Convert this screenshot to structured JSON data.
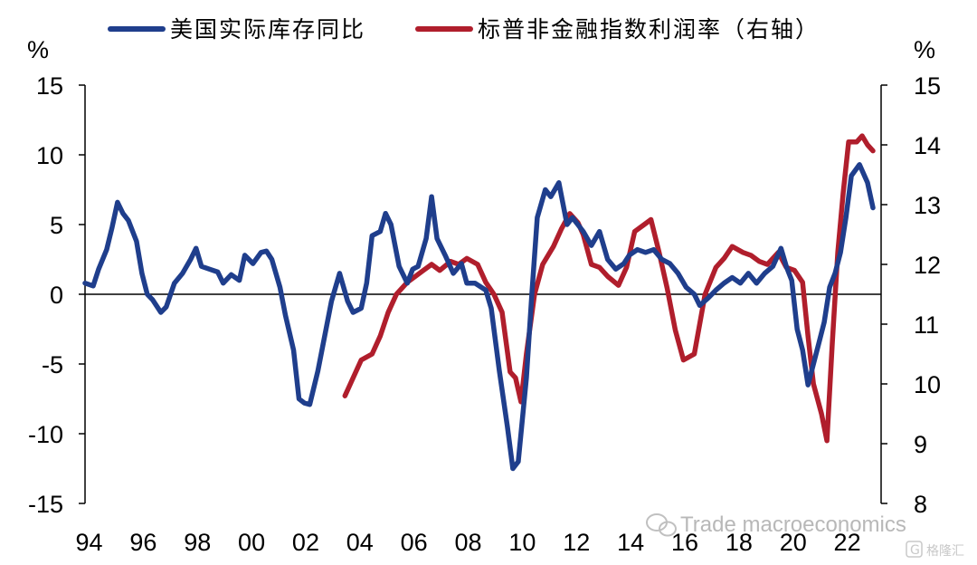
{
  "chart_data": {
    "type": "line",
    "title": "",
    "left_unit": "%",
    "right_unit": "%",
    "x_ticks": [
      "94",
      "96",
      "98",
      "00",
      "02",
      "04",
      "06",
      "08",
      "10",
      "12",
      "14",
      "16",
      "18",
      "20",
      "22"
    ],
    "x_range": [
      1994.0,
      2023.4
    ],
    "y_left": {
      "range": [
        -15,
        15
      ],
      "ticks": [
        15,
        10,
        5,
        0,
        -5,
        -10,
        -15
      ]
    },
    "y_right": {
      "range": [
        8,
        15
      ],
      "ticks": [
        15,
        14,
        13,
        12,
        11,
        10,
        9,
        8
      ]
    },
    "grid": false,
    "legend_position": "top",
    "series": [
      {
        "name": "美国实际库存同比",
        "axis": "left",
        "color": "#1f3e8c",
        "points": [
          [
            1994.0,
            0.8
          ],
          [
            1994.3,
            0.6
          ],
          [
            1994.5,
            1.8
          ],
          [
            1994.8,
            3.2
          ],
          [
            1995.0,
            4.8
          ],
          [
            1995.2,
            6.6
          ],
          [
            1995.4,
            5.8
          ],
          [
            1995.6,
            5.3
          ],
          [
            1995.9,
            3.8
          ],
          [
            1996.1,
            1.5
          ],
          [
            1996.3,
            0.0
          ],
          [
            1996.5,
            -0.4
          ],
          [
            1996.8,
            -1.3
          ],
          [
            1997.0,
            -0.9
          ],
          [
            1997.3,
            0.8
          ],
          [
            1997.6,
            1.5
          ],
          [
            1997.9,
            2.5
          ],
          [
            1998.1,
            3.3
          ],
          [
            1998.3,
            2.0
          ],
          [
            1998.6,
            1.8
          ],
          [
            1998.9,
            1.6
          ],
          [
            1999.1,
            0.8
          ],
          [
            1999.4,
            1.4
          ],
          [
            1999.7,
            1.0
          ],
          [
            1999.9,
            2.8
          ],
          [
            2000.2,
            2.2
          ],
          [
            2000.5,
            3.0
          ],
          [
            2000.7,
            3.1
          ],
          [
            2000.9,
            2.5
          ],
          [
            2001.2,
            0.5
          ],
          [
            2001.4,
            -1.5
          ],
          [
            2001.7,
            -4.0
          ],
          [
            2001.9,
            -7.5
          ],
          [
            2002.1,
            -7.8
          ],
          [
            2002.3,
            -7.9
          ],
          [
            2002.6,
            -5.5
          ],
          [
            2002.9,
            -2.5
          ],
          [
            2003.1,
            -0.5
          ],
          [
            2003.4,
            1.5
          ],
          [
            2003.7,
            -0.5
          ],
          [
            2003.9,
            -1.3
          ],
          [
            2004.2,
            -1.0
          ],
          [
            2004.4,
            0.8
          ],
          [
            2004.6,
            4.2
          ],
          [
            2004.9,
            4.5
          ],
          [
            2005.1,
            5.8
          ],
          [
            2005.3,
            5.0
          ],
          [
            2005.6,
            2.0
          ],
          [
            2005.9,
            0.8
          ],
          [
            2006.1,
            1.8
          ],
          [
            2006.3,
            2.0
          ],
          [
            2006.6,
            4.0
          ],
          [
            2006.8,
            7.0
          ],
          [
            2007.0,
            4.0
          ],
          [
            2007.3,
            2.8
          ],
          [
            2007.6,
            1.5
          ],
          [
            2007.9,
            2.2
          ],
          [
            2008.1,
            0.8
          ],
          [
            2008.4,
            0.8
          ],
          [
            2008.8,
            0.3
          ],
          [
            2009.0,
            -1.0
          ],
          [
            2009.3,
            -5.5
          ],
          [
            2009.6,
            -9.5
          ],
          [
            2009.8,
            -12.5
          ],
          [
            2010.0,
            -12.0
          ],
          [
            2010.3,
            -6.0
          ],
          [
            2010.5,
            0.0
          ],
          [
            2010.7,
            5.5
          ],
          [
            2011.0,
            7.5
          ],
          [
            2011.2,
            7.0
          ],
          [
            2011.5,
            8.0
          ],
          [
            2011.8,
            5.0
          ],
          [
            2012.0,
            5.5
          ],
          [
            2012.4,
            4.5
          ],
          [
            2012.7,
            3.5
          ],
          [
            2013.0,
            4.5
          ],
          [
            2013.3,
            2.5
          ],
          [
            2013.6,
            1.8
          ],
          [
            2013.9,
            2.2
          ],
          [
            2014.1,
            2.8
          ],
          [
            2014.4,
            3.2
          ],
          [
            2014.7,
            3.0
          ],
          [
            2015.0,
            3.2
          ],
          [
            2015.3,
            2.5
          ],
          [
            2015.6,
            2.2
          ],
          [
            2015.9,
            1.5
          ],
          [
            2016.2,
            0.5
          ],
          [
            2016.5,
            0.0
          ],
          [
            2016.7,
            -0.8
          ],
          [
            2017.0,
            -0.3
          ],
          [
            2017.3,
            0.3
          ],
          [
            2017.6,
            0.8
          ],
          [
            2017.9,
            1.2
          ],
          [
            2018.2,
            0.8
          ],
          [
            2018.5,
            1.5
          ],
          [
            2018.8,
            0.8
          ],
          [
            2019.1,
            1.5
          ],
          [
            2019.4,
            2.0
          ],
          [
            2019.7,
            3.3
          ],
          [
            2019.9,
            2.0
          ],
          [
            2020.1,
            1.0
          ],
          [
            2020.3,
            -2.5
          ],
          [
            2020.5,
            -4.0
          ],
          [
            2020.7,
            -6.5
          ],
          [
            2020.9,
            -5.0
          ],
          [
            2021.1,
            -3.5
          ],
          [
            2021.3,
            -2.0
          ],
          [
            2021.5,
            0.5
          ],
          [
            2021.7,
            1.5
          ],
          [
            2021.9,
            3.0
          ],
          [
            2022.1,
            5.5
          ],
          [
            2022.3,
            8.5
          ],
          [
            2022.6,
            9.3
          ],
          [
            2022.9,
            8.0
          ],
          [
            2023.1,
            6.2
          ]
        ]
      },
      {
        "name": "标普非金融指数利润率（右轴）",
        "axis": "right",
        "color": "#b01e2c",
        "points": [
          [
            2003.6,
            9.8
          ],
          [
            2003.9,
            10.1
          ],
          [
            2004.2,
            10.4
          ],
          [
            2004.6,
            10.5
          ],
          [
            2004.9,
            10.8
          ],
          [
            2005.2,
            11.2
          ],
          [
            2005.5,
            11.5
          ],
          [
            2005.9,
            11.7
          ],
          [
            2006.2,
            11.8
          ],
          [
            2006.5,
            11.9
          ],
          [
            2006.8,
            12.0
          ],
          [
            2007.1,
            11.9
          ],
          [
            2007.5,
            12.05
          ],
          [
            2007.8,
            12.0
          ],
          [
            2008.1,
            12.1
          ],
          [
            2008.5,
            12.0
          ],
          [
            2008.8,
            11.7
          ],
          [
            2009.1,
            11.5
          ],
          [
            2009.4,
            11.2
          ],
          [
            2009.7,
            10.2
          ],
          [
            2009.9,
            10.1
          ],
          [
            2010.1,
            9.7
          ],
          [
            2010.3,
            10.5
          ],
          [
            2010.6,
            11.5
          ],
          [
            2010.9,
            12.0
          ],
          [
            2011.3,
            12.3
          ],
          [
            2011.6,
            12.6
          ],
          [
            2011.9,
            12.85
          ],
          [
            2012.2,
            12.7
          ],
          [
            2012.4,
            12.5
          ],
          [
            2012.7,
            12.0
          ],
          [
            2013.0,
            11.95
          ],
          [
            2013.3,
            11.8
          ],
          [
            2013.7,
            11.65
          ],
          [
            2014.0,
            11.95
          ],
          [
            2014.3,
            12.55
          ],
          [
            2014.6,
            12.65
          ],
          [
            2014.9,
            12.75
          ],
          [
            2015.2,
            12.2
          ],
          [
            2015.5,
            11.6
          ],
          [
            2015.8,
            10.9
          ],
          [
            2016.1,
            10.4
          ],
          [
            2016.5,
            10.5
          ],
          [
            2016.9,
            11.5
          ],
          [
            2017.3,
            11.95
          ],
          [
            2017.6,
            12.1
          ],
          [
            2017.9,
            12.3
          ],
          [
            2018.3,
            12.2
          ],
          [
            2018.6,
            12.15
          ],
          [
            2018.9,
            12.05
          ],
          [
            2019.2,
            12.0
          ],
          [
            2019.6,
            12.2
          ],
          [
            2019.9,
            11.95
          ],
          [
            2020.2,
            11.9
          ],
          [
            2020.5,
            11.7
          ],
          [
            2020.7,
            10.8
          ],
          [
            2020.9,
            10.0
          ],
          [
            2021.2,
            9.5
          ],
          [
            2021.4,
            9.05
          ],
          [
            2021.6,
            10.7
          ],
          [
            2021.8,
            12.2
          ],
          [
            2022.0,
            13.2
          ],
          [
            2022.2,
            14.05
          ],
          [
            2022.5,
            14.05
          ],
          [
            2022.7,
            14.15
          ],
          [
            2022.9,
            14.0
          ],
          [
            2023.1,
            13.9
          ]
        ]
      }
    ],
    "watermark": {
      "text": "Trade macroeconomics",
      "badge": "格隆汇"
    }
  }
}
